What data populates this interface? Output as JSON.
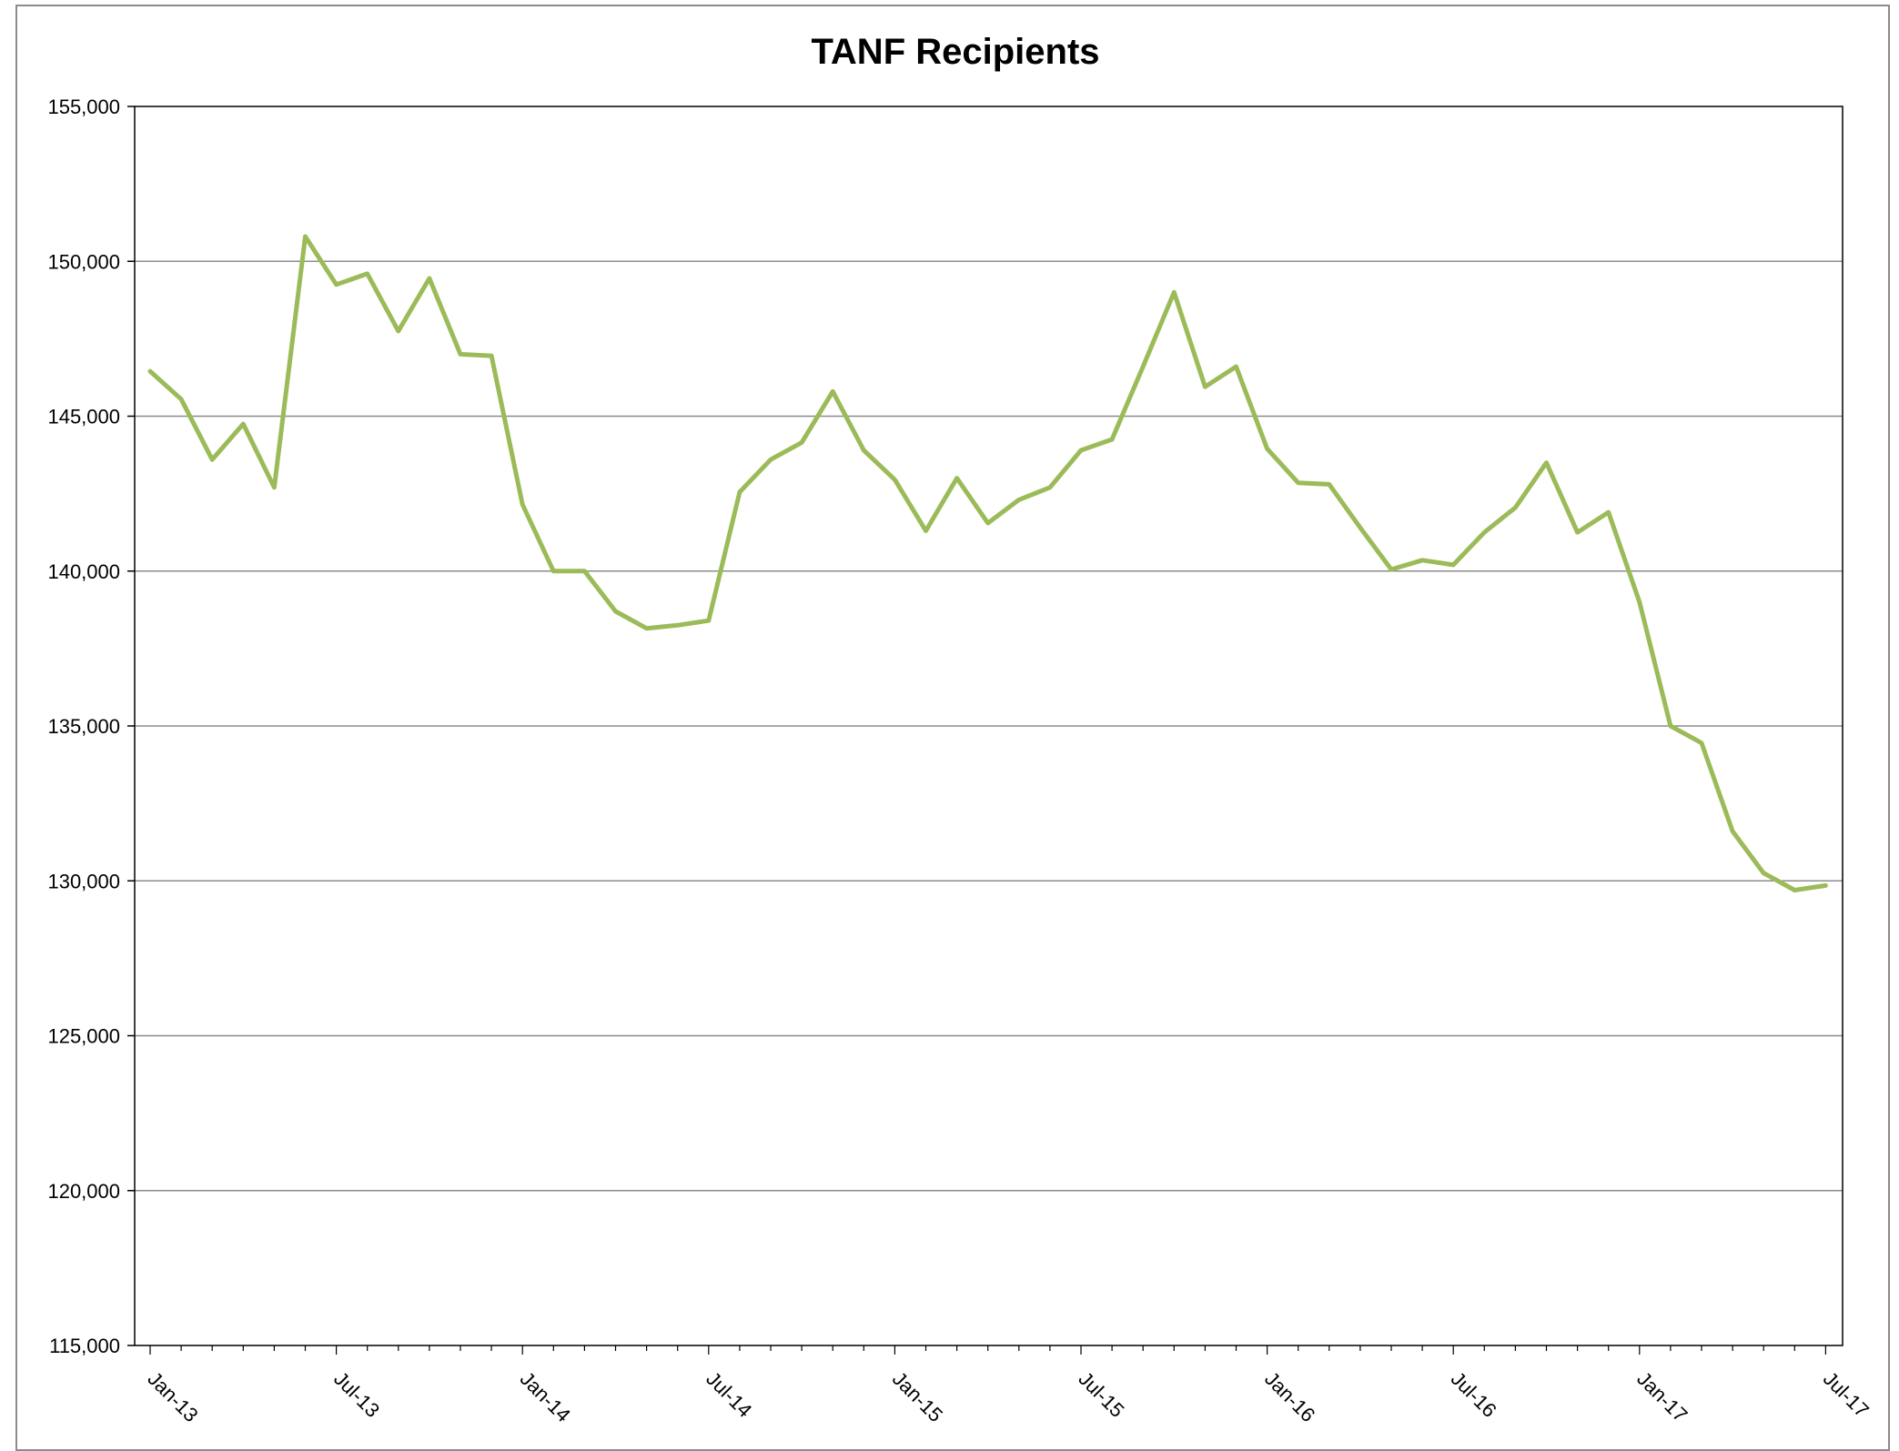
{
  "chart_data": {
    "type": "line",
    "title": "TANF Recipients",
    "xlabel": "",
    "ylabel": "",
    "ylim": [
      115000,
      155000
    ],
    "yticks": [
      "115,000",
      "120,000",
      "125,000",
      "130,000",
      "135,000",
      "140,000",
      "145,000",
      "150,000",
      "155,000"
    ],
    "xticks": [
      "Jan-13",
      "Jul-13",
      "Jan-14",
      "Jul-14",
      "Jan-15",
      "Jul-15",
      "Jan-16",
      "Jul-16",
      "Jan-17",
      "Jul-17"
    ],
    "x_start": "Jan-13",
    "x_end": "Jul-17",
    "grid": "horizontal",
    "legend": "none",
    "line_color": "#9bbb59",
    "series": [
      {
        "x": [
          "Jan-13",
          "Feb-13",
          "Mar-13",
          "Apr-13",
          "May-13",
          "Jun-13",
          "Jul-13",
          "Aug-13",
          "Sep-13",
          "Oct-13",
          "Nov-13",
          "Dec-13",
          "Jan-14",
          "Feb-14",
          "Mar-14",
          "Apr-14",
          "May-14",
          "Jun-14",
          "Jul-14",
          "Aug-14",
          "Sep-14",
          "Oct-14",
          "Nov-14",
          "Dec-14",
          "Jan-15",
          "Feb-15",
          "Mar-15",
          "Apr-15",
          "May-15",
          "Jun-15",
          "Jul-15",
          "Aug-15",
          "Sep-15",
          "Oct-15",
          "Nov-15",
          "Dec-15",
          "Jan-16",
          "Feb-16",
          "Mar-16",
          "Apr-16",
          "May-16",
          "Jun-16",
          "Jul-16",
          "Aug-16",
          "Sep-16",
          "Oct-16",
          "Nov-16",
          "Dec-16",
          "Jan-17",
          "Feb-17",
          "Mar-17",
          "Apr-17",
          "May-17",
          "Jun-17",
          "Jul-17"
        ],
        "values": [
          146450,
          145550,
          143600,
          144750,
          142700,
          150800,
          149250,
          149600,
          147750,
          149450,
          147000,
          146950,
          142150,
          140000,
          140000,
          138700,
          138150,
          138250,
          138400,
          142550,
          143600,
          144150,
          145800,
          143900,
          142950,
          141300,
          143000,
          141550,
          142300,
          142700,
          143900,
          144250,
          146600,
          149000,
          145950,
          146600,
          143950,
          142850,
          142800,
          141400,
          140050,
          140350,
          140200,
          141250,
          142050,
          143500,
          141250,
          141900,
          139000,
          135000,
          134450,
          131600,
          130250,
          129700,
          129850
        ]
      }
    ]
  }
}
